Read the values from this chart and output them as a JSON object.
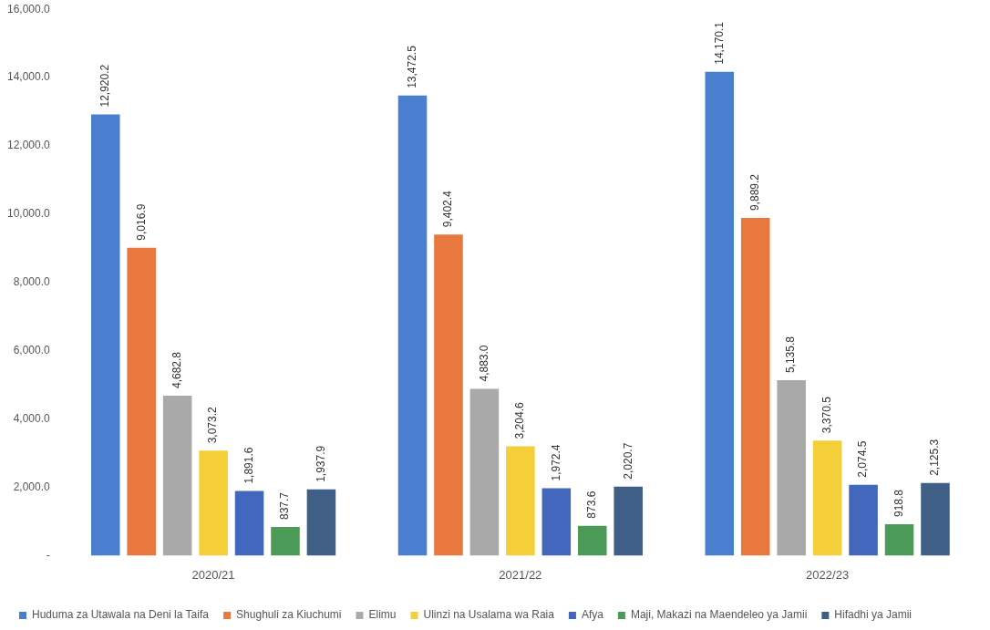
{
  "chart_data": {
    "type": "bar",
    "categories": [
      "2020/21",
      "2021/22",
      "2022/23"
    ],
    "series": [
      {
        "name": "Huduma za Utawala na Deni la Taifa",
        "color": "#4a7fd0",
        "values": [
          12920.2,
          13472.5,
          14170.1
        ],
        "value_labels": [
          "12,920.2",
          "13,472.5",
          "14,170.1"
        ]
      },
      {
        "name": "Shughuli za Kiuchumi",
        "color": "#e9783f",
        "values": [
          9016.9,
          9402.4,
          9889.2
        ],
        "value_labels": [
          "9,016.9",
          "9,402.4",
          "9,889.2"
        ]
      },
      {
        "name": "Elimu",
        "color": "#a9a9a9",
        "values": [
          4682.8,
          4883.0,
          5135.8
        ],
        "value_labels": [
          "4,682.8",
          "4,883.0",
          "5,135.8"
        ]
      },
      {
        "name": "Ulinzi na Usalama wa Raia",
        "color": "#f5cf3a",
        "values": [
          3073.2,
          3204.6,
          3370.5
        ],
        "value_labels": [
          "3,073.2",
          "3,204.6",
          "3,370.5"
        ]
      },
      {
        "name": "Afya",
        "color": "#4267bd",
        "values": [
          1891.6,
          1972.4,
          2074.5
        ],
        "value_labels": [
          "1,891.6",
          "1,972.4",
          "2,074.5"
        ]
      },
      {
        "name": "Maji, Makazi na Maendeleo ya Jamii",
        "color": "#4b9a57",
        "values": [
          837.7,
          873.6,
          918.8
        ],
        "value_labels": [
          "837.7",
          "873.6",
          "918.8"
        ]
      },
      {
        "name": "Hifadhi ya Jamii",
        "color": "#3f5f86",
        "values": [
          1937.9,
          2020.7,
          2125.3
        ],
        "value_labels": [
          "1,937.9",
          "2,020.7",
          "2,125.3"
        ]
      }
    ],
    "ylim": [
      0,
      16000
    ],
    "yticks": [
      {
        "value": 0,
        "label": "-"
      },
      {
        "value": 2000,
        "label": "2,000.0"
      },
      {
        "value": 4000,
        "label": "4,000.0"
      },
      {
        "value": 6000,
        "label": "6,000.0"
      },
      {
        "value": 8000,
        "label": "8,000.0"
      },
      {
        "value": 10000,
        "label": "10,000.0"
      },
      {
        "value": 12000,
        "label": "12,000.0"
      },
      {
        "value": 14000,
        "label": "14,000.0"
      },
      {
        "value": 16000,
        "label": "16,000.0"
      }
    ],
    "grid": false,
    "legend": "bottom"
  }
}
